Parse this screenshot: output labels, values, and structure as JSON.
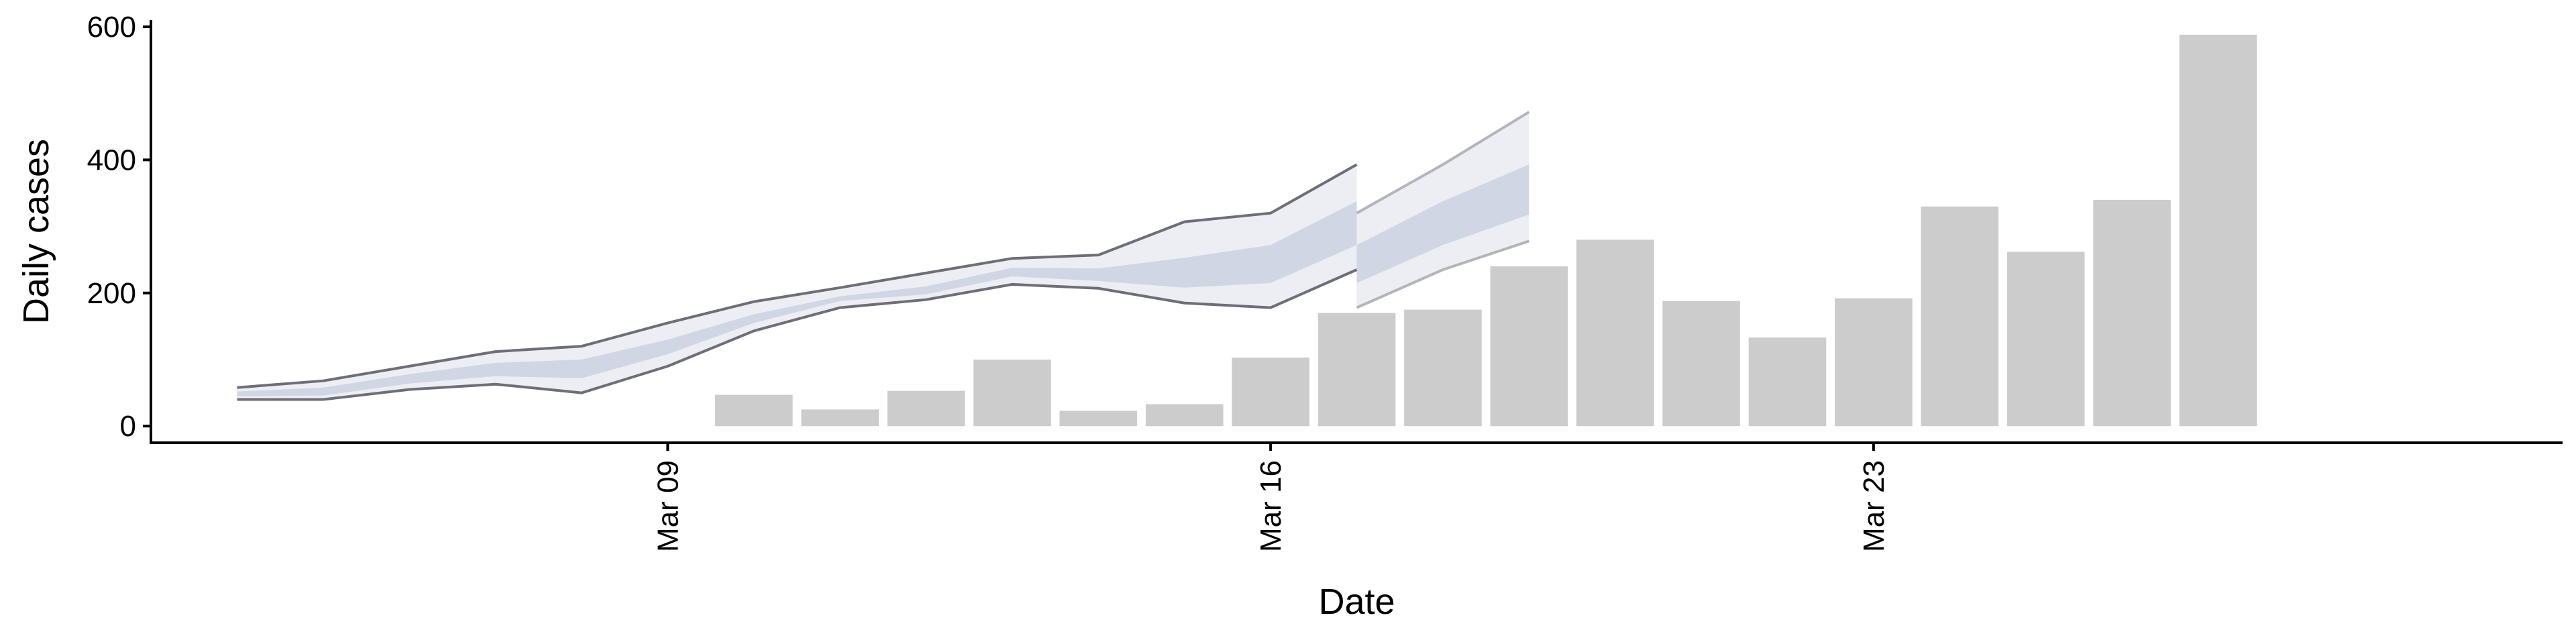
{
  "chart_data": {
    "type": "bar",
    "title": "",
    "xlabel": "Date",
    "ylabel": "Daily cases",
    "ylim": [
      -25,
      610
    ],
    "yticks": [
      0,
      200,
      400,
      600
    ],
    "xlim": [
      "2026-03-03",
      "2026-03-31"
    ],
    "xticks": [
      {
        "date": "2026-03-09",
        "label": "Mar 09"
      },
      {
        "date": "2026-03-16",
        "label": "Mar 16"
      },
      {
        "date": "2026-03-23",
        "label": "Mar 23"
      }
    ],
    "grid": false,
    "bars": {
      "name": "Reported cases",
      "color": "#cccccc",
      "points": [
        {
          "date": "2026-03-10",
          "value": 47
        },
        {
          "date": "2026-03-11",
          "value": 25
        },
        {
          "date": "2026-03-12",
          "value": 53
        },
        {
          "date": "2026-03-13",
          "value": 100
        },
        {
          "date": "2026-03-14",
          "value": 23
        },
        {
          "date": "2026-03-15",
          "value": 33
        },
        {
          "date": "2026-03-16",
          "value": 103
        },
        {
          "date": "2026-03-17",
          "value": 170
        },
        {
          "date": "2026-03-18",
          "value": 175
        },
        {
          "date": "2026-03-19",
          "value": 240
        },
        {
          "date": "2026-03-20",
          "value": 280
        },
        {
          "date": "2026-03-21",
          "value": 188
        },
        {
          "date": "2026-03-22",
          "value": 133
        },
        {
          "date": "2026-03-23",
          "value": 192
        },
        {
          "date": "2026-03-24",
          "value": 330
        },
        {
          "date": "2026-03-25",
          "value": 262
        },
        {
          "date": "2026-03-26",
          "value": 340
        },
        {
          "date": "2026-03-27",
          "value": 588
        }
      ]
    },
    "bands": {
      "outer_color": "#edeef3",
      "inner_color": "#d0d6e4",
      "estimate_edge_color": "#6e6e78",
      "forecast_edge_color": "#b4b4ba",
      "estimate_dates": [
        "2026-03-04",
        "2026-03-05",
        "2026-03-06",
        "2026-03-07",
        "2026-03-08",
        "2026-03-09",
        "2026-03-10",
        "2026-03-11",
        "2026-03-12",
        "2026-03-13",
        "2026-03-14",
        "2026-03-15",
        "2026-03-16",
        "2026-03-17"
      ],
      "forecast_dates": [
        "2026-03-17",
        "2026-03-18",
        "2026-03-19"
      ],
      "estimate_outer_upper": [
        58,
        68,
        90,
        112,
        120,
        155,
        187,
        208,
        230,
        252,
        257,
        307,
        320,
        393
      ],
      "estimate_outer_lower": [
        40,
        40,
        55,
        63,
        50,
        90,
        143,
        178,
        190,
        213,
        207,
        185,
        178,
        235
      ],
      "estimate_inner_upper": [
        52,
        58,
        78,
        95,
        100,
        130,
        168,
        195,
        210,
        238,
        237,
        253,
        272,
        338
      ],
      "estimate_inner_lower": [
        45,
        46,
        64,
        75,
        72,
        108,
        155,
        188,
        198,
        225,
        218,
        208,
        215,
        272
      ],
      "forecast_outer_upper": [
        320,
        393,
        472
      ],
      "forecast_outer_lower": [
        178,
        235,
        278
      ],
      "forecast_inner_upper": [
        272,
        338,
        393
      ],
      "forecast_inner_lower": [
        215,
        272,
        318
      ]
    }
  }
}
